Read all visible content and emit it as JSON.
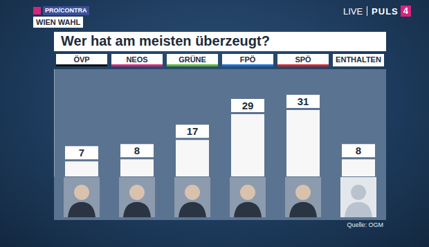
{
  "header": {
    "show": "PRO/CONTRA",
    "subtitle": "WIEN WAHL",
    "live": "LIVE",
    "channel": "PULS",
    "channel_number": "4"
  },
  "chart_data": {
    "type": "bar",
    "title": "Wer hat am meisten überzeugt?",
    "categories": [
      "ÖVP",
      "NEOS",
      "GRÜNE",
      "FPÖ",
      "SPÖ",
      "ENTHALTEN"
    ],
    "values": [
      7,
      8,
      17,
      29,
      31,
      8
    ],
    "color": "#f7f7f7",
    "ylim": [
      0,
      50
    ],
    "grid": false,
    "data_labels": true,
    "tick_labels": "x"
  },
  "footer": {
    "source": "Quelle: OGM"
  }
}
